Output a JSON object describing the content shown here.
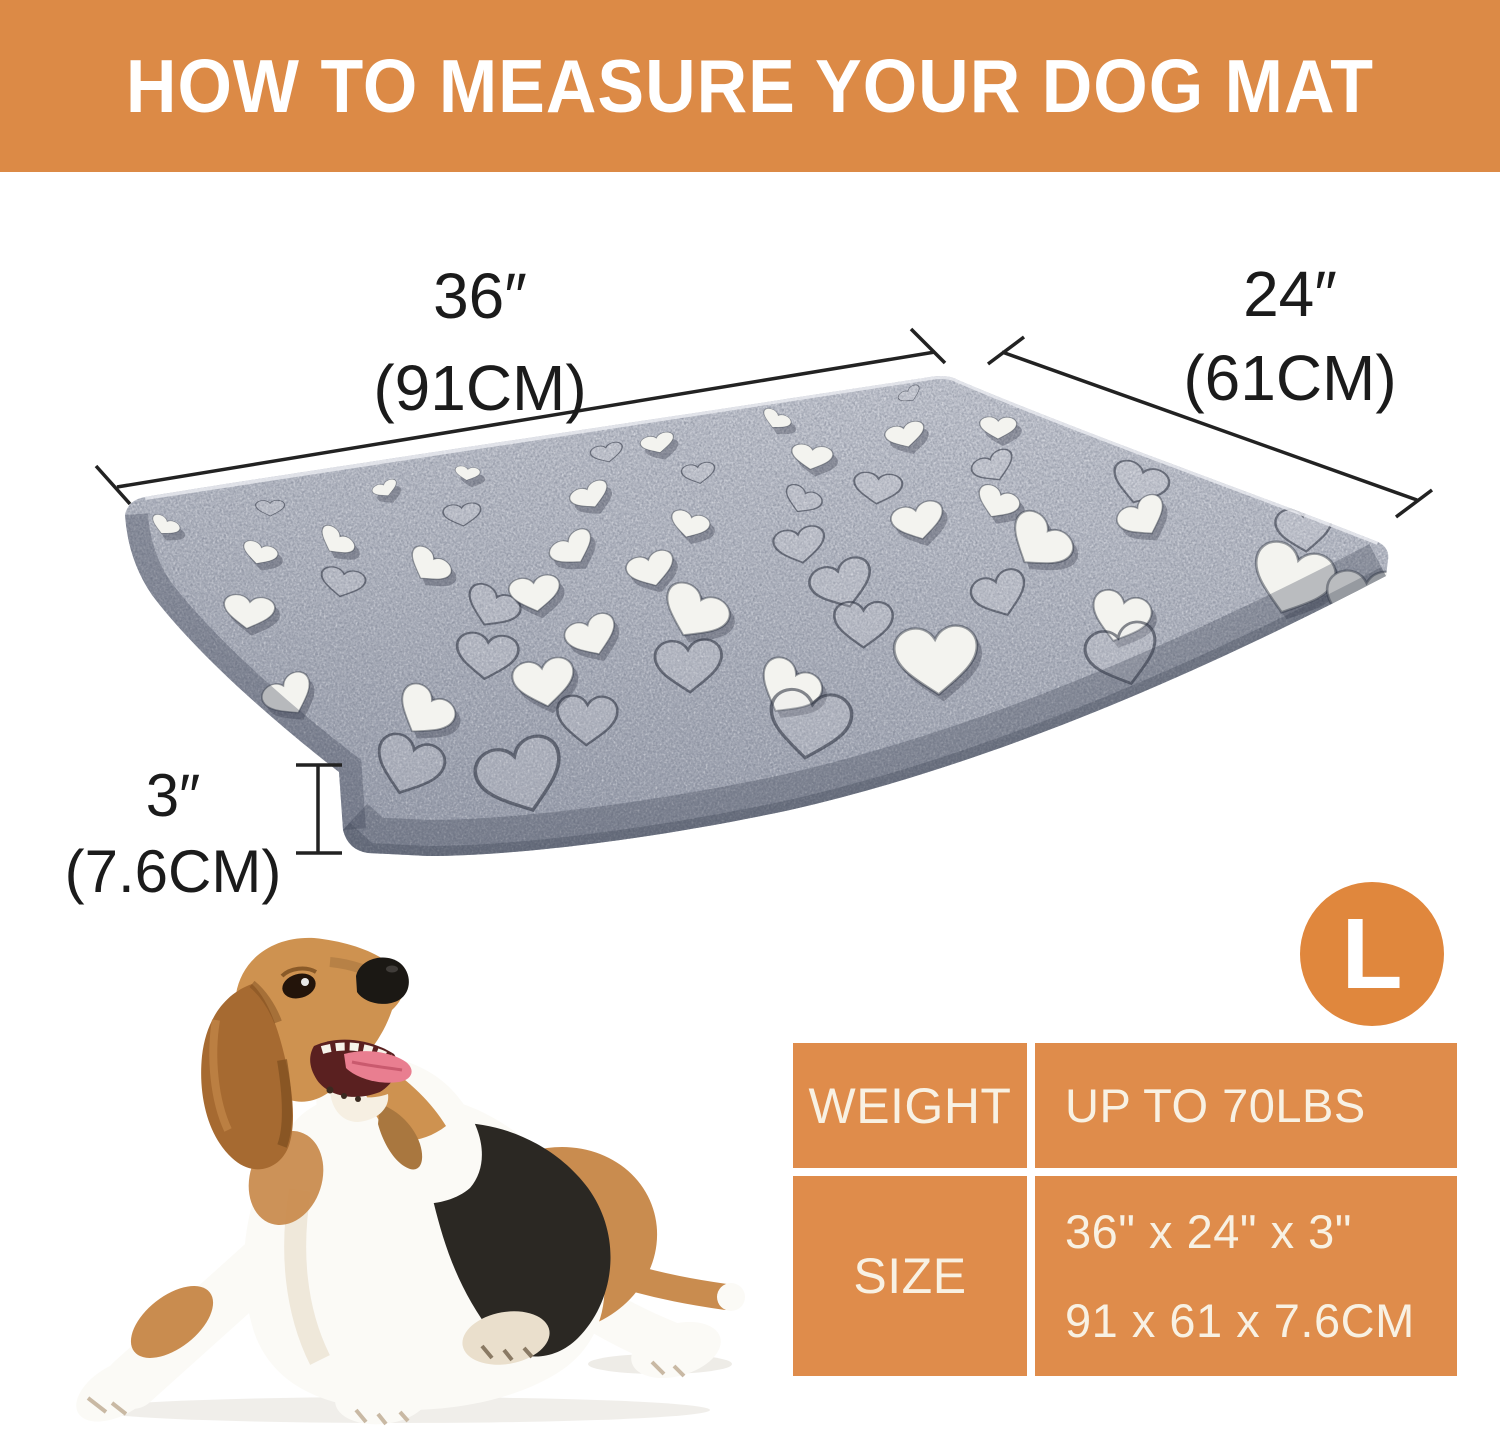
{
  "header": {
    "title": "HOW TO MEASURE YOUR DOG MAT"
  },
  "measurements": {
    "width": {
      "value": "36″",
      "metric": "(91CM)"
    },
    "depth": {
      "value": "24″",
      "metric": "(61CM)"
    },
    "height": {
      "value": "3″",
      "metric": "(7.6CM)"
    }
  },
  "size_badge": {
    "letter": "L"
  },
  "spec_table": {
    "rows": [
      {
        "label": "WEIGHT",
        "values": [
          "UP TO 70LBS"
        ]
      },
      {
        "label": "SIZE",
        "values": [
          "36\" x 24\" x 3\"",
          "91 x 61 x 7.6CM"
        ]
      }
    ]
  },
  "colors": {
    "header_orange": "#DC8A46",
    "table_orange": "#DF8C4B",
    "badge_orange": "#E0873D",
    "label_text": "#1B1B1B",
    "table_text": "#F8F1E3"
  }
}
